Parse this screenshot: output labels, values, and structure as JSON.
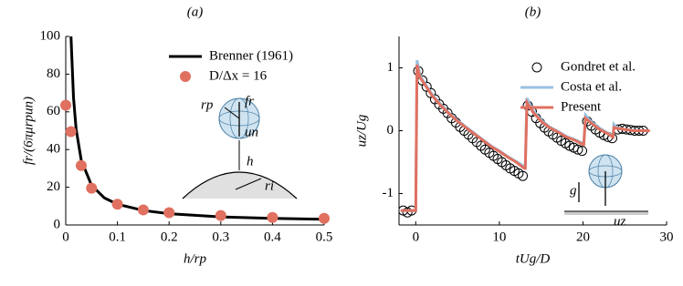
{
  "chart_data": [
    {
      "type": "line",
      "panel": "(a)",
      "xlabel": "h/rp",
      "ylabel": "fr/(6πμrpun)",
      "xlim": [
        0,
        0.5
      ],
      "xticks": [
        0,
        0.1,
        0.2,
        0.3,
        0.4,
        0.5
      ],
      "ylim": [
        0,
        100
      ],
      "yticks": [
        0,
        20,
        40,
        60,
        80,
        100
      ],
      "legend": "upper right",
      "annotations": [
        "rp",
        "fr",
        "un",
        "h",
        "ri"
      ],
      "series": [
        {
          "name": "Brenner (1961)",
          "color": "#000000",
          "style": "line",
          "x": [
            0.01,
            0.015,
            0.02,
            0.03,
            0.05,
            0.075,
            0.1,
            0.15,
            0.2,
            0.3,
            0.4,
            0.5
          ],
          "values": [
            101,
            67.7,
            51,
            34.3,
            21,
            14.3,
            11,
            7.7,
            6,
            4.3,
            3.5,
            3
          ]
        },
        {
          "name": "D/Δx = 16",
          "color": "#e07060",
          "style": "marker",
          "x": [
            0,
            0.01,
            0.03,
            0.05,
            0.1,
            0.15,
            0.2,
            0.3,
            0.4,
            0.5
          ],
          "values": [
            63.5,
            49.5,
            31.5,
            19.5,
            11,
            8,
            6.5,
            5,
            4,
            3.5
          ]
        }
      ]
    },
    {
      "type": "line",
      "panel": "(b)",
      "xlabel": "tUg/D",
      "ylabel": "uz/Ug",
      "xlim": [
        -2,
        30
      ],
      "xticks": [
        0,
        10,
        20,
        30
      ],
      "ylim": [
        -1.5,
        1.5
      ],
      "yticks": [
        -1,
        0,
        1
      ],
      "legend": "upper right",
      "annotations": [
        "g",
        "uz"
      ],
      "series": [
        {
          "name": "Gondret et al.",
          "color": "#000000",
          "style": "open-marker",
          "x": [
            -1.5,
            -1,
            -0.5,
            0.3,
            0.8,
            1.3,
            1.8,
            2.3,
            2.8,
            3.3,
            3.8,
            4.3,
            4.8,
            5.3,
            5.8,
            6.3,
            6.8,
            7.3,
            7.8,
            8.3,
            8.8,
            9.3,
            9.8,
            10.3,
            10.8,
            11.3,
            11.8,
            12.3,
            12.8,
            13.4,
            13.9,
            14.4,
            14.9,
            15.4,
            15.9,
            16.4,
            16.9,
            17.4,
            17.9,
            18.4,
            18.9,
            19.4,
            19.9,
            20.5,
            21,
            21.5,
            22,
            22.5,
            23,
            23.5,
            24.2,
            24.7,
            25.2,
            25.7,
            26.2,
            26.7,
            27.2
          ],
          "values": [
            -1.27,
            -1.3,
            -1.27,
            0.95,
            0.8,
            0.7,
            0.6,
            0.5,
            0.42,
            0.35,
            0.28,
            0.2,
            0.13,
            0.06,
            0,
            -0.06,
            -0.12,
            -0.18,
            -0.24,
            -0.3,
            -0.35,
            -0.4,
            -0.45,
            -0.5,
            -0.55,
            -0.6,
            -0.64,
            -0.68,
            -0.72,
            0.4,
            0.3,
            0.2,
            0.12,
            0.05,
            -0.01,
            -0.06,
            -0.11,
            -0.16,
            -0.2,
            -0.24,
            -0.27,
            -0.3,
            -0.32,
            0.15,
            0.08,
            0.02,
            -0.03,
            -0.07,
            -0.1,
            -0.12,
            0.02,
            0.03,
            0.02,
            0.01,
            0,
            0,
            0
          ]
        },
        {
          "name": "Costa et al.",
          "color": "#9ac0e0",
          "style": "line",
          "x": [
            -1.8,
            0,
            0.15,
            0.5,
            1,
            2,
            3,
            4,
            5,
            6,
            7,
            8,
            9,
            10,
            11,
            12,
            13,
            13.1,
            13.3,
            14,
            15,
            16,
            17,
            18,
            19,
            20,
            20.1,
            20.3,
            21,
            22,
            23,
            23.6,
            23.7,
            24,
            25,
            26,
            27,
            28
          ],
          "values": [
            -1.27,
            -1.27,
            1.12,
            0.88,
            0.77,
            0.57,
            0.42,
            0.28,
            0.16,
            0.06,
            -0.04,
            -0.14,
            -0.24,
            -0.32,
            -0.41,
            -0.49,
            -0.57,
            -0.57,
            0.52,
            0.33,
            0.17,
            0.06,
            -0.01,
            -0.09,
            -0.14,
            -0.2,
            -0.2,
            0.25,
            0.14,
            0.04,
            -0.04,
            -0.08,
            0.1,
            0.05,
            0.02,
            0.01,
            0,
            0
          ]
        },
        {
          "name": "Present",
          "color": "#e07060",
          "style": "line",
          "x": [
            -1.8,
            0,
            0.15,
            0.5,
            1,
            2,
            3,
            4,
            5,
            6,
            7,
            8,
            9,
            10,
            11,
            12,
            13,
            13.1,
            13.3,
            14,
            15,
            16,
            17,
            18,
            19,
            20,
            20.1,
            20.3,
            21,
            22,
            23,
            23.6,
            23.7,
            24,
            25,
            26,
            27,
            28
          ],
          "values": [
            -1.27,
            -1.27,
            1.05,
            0.85,
            0.75,
            0.55,
            0.4,
            0.27,
            0.15,
            0.05,
            -0.05,
            -0.15,
            -0.25,
            -0.33,
            -0.42,
            -0.5,
            -0.6,
            -0.6,
            0.45,
            0.3,
            0.15,
            0.05,
            -0.02,
            -0.1,
            -0.15,
            -0.22,
            -0.22,
            0.2,
            0.12,
            0.02,
            -0.05,
            -0.1,
            0.05,
            0.04,
            0.02,
            0,
            0,
            0
          ]
        }
      ]
    }
  ]
}
